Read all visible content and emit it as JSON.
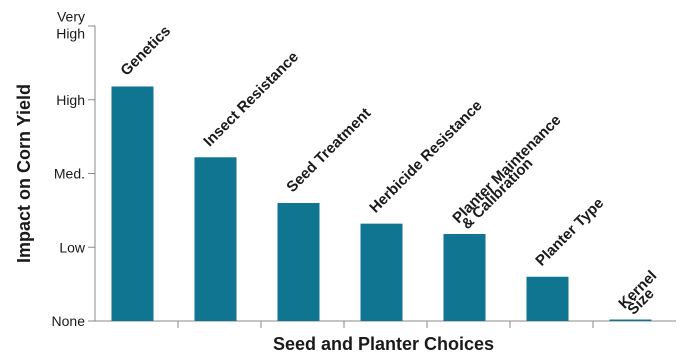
{
  "chart_data": {
    "type": "bar",
    "title": "",
    "xlabel": "Seed and Planter Choices",
    "ylabel": "Impact on Corn Yield",
    "y_ticks": [
      {
        "value": 0,
        "label": [
          "None"
        ]
      },
      {
        "value": 1,
        "label": [
          "Low"
        ]
      },
      {
        "value": 2,
        "label": [
          "Med."
        ]
      },
      {
        "value": 3,
        "label": [
          "High"
        ]
      },
      {
        "value": 4,
        "label": [
          "Very",
          "High"
        ]
      }
    ],
    "ylim": [
      0,
      4
    ],
    "grid": false,
    "bar_color": "#0f7590",
    "categories": [
      {
        "label": [
          "Genetics"
        ],
        "value": 3.18
      },
      {
        "label": [
          "Insect Resistance"
        ],
        "value": 2.22
      },
      {
        "label": [
          "Seed Treatment"
        ],
        "value": 1.6
      },
      {
        "label": [
          "Herbicide Resistance"
        ],
        "value": 1.32
      },
      {
        "label": [
          "Planter Maintenance",
          "& Calibration"
        ],
        "value": 1.18
      },
      {
        "label": [
          "Planter Type"
        ],
        "value": 0.6
      },
      {
        "label": [
          "Kernel",
          "Size"
        ],
        "value": 0.02
      }
    ]
  }
}
